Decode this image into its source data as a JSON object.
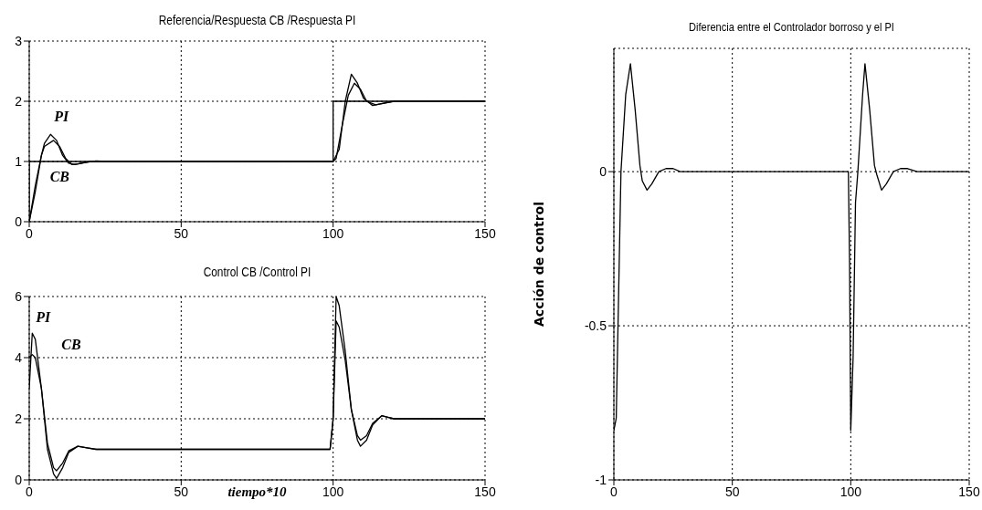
{
  "chart_data": [
    {
      "type": "line",
      "title": "Referencia/Respuesta CB /Respuesta PI",
      "xlim": [
        0,
        150
      ],
      "xticks": [
        0,
        50,
        100,
        150
      ],
      "ylim": [
        0,
        3
      ],
      "yticks": [
        0,
        1,
        2,
        3
      ],
      "grid": true,
      "series": [
        {
          "color": "#000000",
          "x": [
            0,
            0,
            100,
            100,
            150
          ],
          "values": [
            0,
            1,
            1,
            2,
            2
          ]
        },
        {
          "color": "#000000",
          "x": [
            0,
            2,
            4,
            5,
            7,
            9,
            11,
            13,
            15,
            18,
            22,
            25,
            100,
            102,
            104,
            106,
            108,
            110,
            113,
            116,
            120,
            150
          ],
          "values": [
            0,
            0.5,
            1.1,
            1.3,
            1.45,
            1.35,
            1.1,
            0.97,
            0.95,
            0.98,
            1.01,
            1,
            1,
            1.2,
            2.0,
            2.45,
            2.3,
            2.05,
            1.93,
            1.96,
            2,
            2
          ]
        },
        {
          "color": "#000000",
          "x": [
            0,
            2,
            4,
            5,
            8,
            10,
            12,
            14,
            16,
            20,
            25,
            100,
            101,
            103,
            105,
            107,
            109,
            111,
            114,
            117,
            120,
            150
          ],
          "values": [
            0,
            0.6,
            1.1,
            1.25,
            1.35,
            1.25,
            1.05,
            0.95,
            0.96,
            1,
            1,
            1,
            1.05,
            1.6,
            2.1,
            2.3,
            2.2,
            2.0,
            1.94,
            1.97,
            2,
            2
          ]
        }
      ],
      "annotations": [
        {
          "text": "PI",
          "x": 7,
          "y": 1.45
        },
        {
          "text": "CB",
          "x": 5,
          "y": 1.0
        }
      ]
    },
    {
      "type": "line",
      "title": "Control CB /Control PI",
      "xlabel": "tiempo*10",
      "xlim": [
        0,
        150
      ],
      "xticks": [
        0,
        50,
        100,
        150
      ],
      "ylim": [
        0,
        6
      ],
      "yticks": [
        0,
        2,
        4,
        6
      ],
      "grid": true,
      "series": [
        {
          "color": "#000000",
          "x": [
            0,
            1,
            2,
            4,
            6,
            8,
            9,
            11,
            13,
            16,
            19,
            22,
            30,
            99,
            100,
            101,
            102,
            104,
            106,
            108,
            109,
            111,
            113,
            116,
            118,
            120,
            150
          ],
          "values": [
            3,
            4.8,
            4.6,
            3,
            1,
            0.2,
            0.05,
            0.4,
            0.9,
            1.1,
            1.05,
            1,
            1,
            1,
            2,
            6,
            5.7,
            4.2,
            2.3,
            1.3,
            1.1,
            1.3,
            1.8,
            2.1,
            2.05,
            2,
            2
          ]
        },
        {
          "color": "#000000",
          "x": [
            0,
            1,
            2,
            4,
            6,
            8,
            9,
            11,
            13,
            16,
            19,
            22,
            30,
            99,
            100,
            101,
            102,
            104,
            106,
            108,
            109,
            111,
            113,
            116,
            118,
            120,
            150
          ],
          "values": [
            4,
            4.1,
            4.0,
            3,
            1.2,
            0.4,
            0.3,
            0.55,
            0.95,
            1.1,
            1.05,
            1,
            1,
            1,
            2,
            5.2,
            5.0,
            3.9,
            2.3,
            1.45,
            1.3,
            1.45,
            1.85,
            2.1,
            2.05,
            2,
            2
          ]
        }
      ],
      "annotations": [
        {
          "text": "PI",
          "x": 1,
          "y": 4.8
        },
        {
          "text": "CB",
          "x": 1,
          "y": 4.1
        }
      ]
    },
    {
      "type": "line",
      "title": "Diferencia entre el Controlador borroso y el PI",
      "ylabel": "Acción de control",
      "xlim": [
        0,
        150
      ],
      "xticks": [
        0,
        50,
        100,
        150
      ],
      "ylim": [
        -1,
        0.4
      ],
      "yticks": [
        -1,
        -0.5,
        0
      ],
      "grid": true,
      "series": [
        {
          "color": "#000000",
          "x": [
            0,
            1,
            2,
            3,
            5,
            7,
            9,
            11,
            12,
            14,
            16,
            19,
            22,
            25,
            28,
            99,
            99.5,
            100,
            101,
            102,
            103,
            105,
            106,
            108,
            110,
            111,
            113,
            115,
            118,
            121,
            124,
            128,
            150
          ],
          "values": [
            -0.84,
            -0.8,
            -0.4,
            0,
            0.25,
            0.35,
            0.2,
            0.02,
            -0.03,
            -0.06,
            -0.04,
            0,
            0.01,
            0.01,
            0,
            0,
            -0.3,
            -0.84,
            -0.6,
            -0.1,
            0,
            0.25,
            0.35,
            0.2,
            0.02,
            -0.01,
            -0.06,
            -0.04,
            0,
            0.01,
            0.01,
            0,
            0
          ]
        }
      ]
    }
  ]
}
